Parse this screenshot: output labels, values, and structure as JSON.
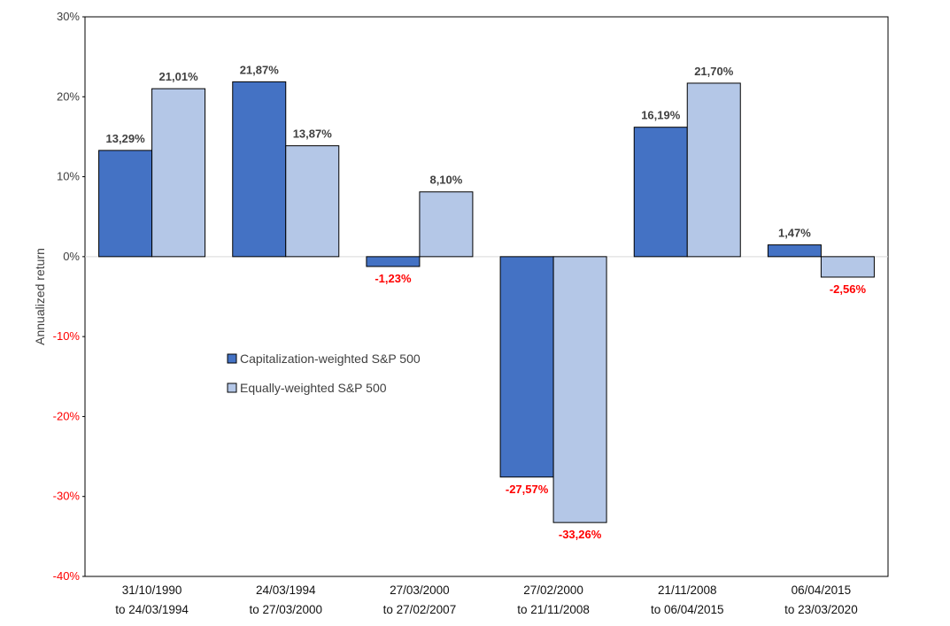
{
  "chart_data": {
    "type": "bar",
    "title": "",
    "xlabel": "",
    "ylabel": "Annualized return",
    "ylim": [
      -40,
      30
    ],
    "yticks": [
      30,
      20,
      10,
      0,
      -10,
      -20,
      -30,
      -40
    ],
    "ytick_labels": [
      "30%",
      "20%",
      "10%",
      "0%",
      "-10%",
      "-20%",
      "-30%",
      "-40%"
    ],
    "grid": false,
    "legend_position": "center-left",
    "categories": [
      [
        "31/10/1990",
        "to 24/03/1994"
      ],
      [
        "24/03/1994",
        "to 27/03/2000"
      ],
      [
        "27/03/2000",
        "to 27/02/2007"
      ],
      [
        "27/02/2000",
        "to 21/11/2008"
      ],
      [
        "21/11/2008",
        "to 06/04/2015"
      ],
      [
        "06/04/2015",
        "to 23/03/2020"
      ]
    ],
    "series": [
      {
        "name": "Capitalization-weighted S&P 500",
        "color": "#4472c4",
        "values": [
          13.29,
          21.87,
          -1.23,
          -27.57,
          16.19,
          1.47
        ],
        "labels": [
          "13,29%",
          "21,87%",
          "-1,23%",
          "-27,57%",
          "16,19%",
          "1,47%"
        ]
      },
      {
        "name": "Equally-weighted S&P 500",
        "color": "#b4c7e7",
        "values": [
          21.01,
          13.87,
          8.1,
          -33.26,
          21.7,
          -2.56
        ],
        "labels": [
          "21,01%",
          "13,87%",
          "8,10%",
          "-33,26%",
          "21,70%",
          "-2,56%"
        ]
      }
    ],
    "colors": {
      "positive_text": "#404040",
      "negative_text": "#ff0000",
      "axis": "#000000",
      "zero_line": "#d9d9d9"
    }
  }
}
